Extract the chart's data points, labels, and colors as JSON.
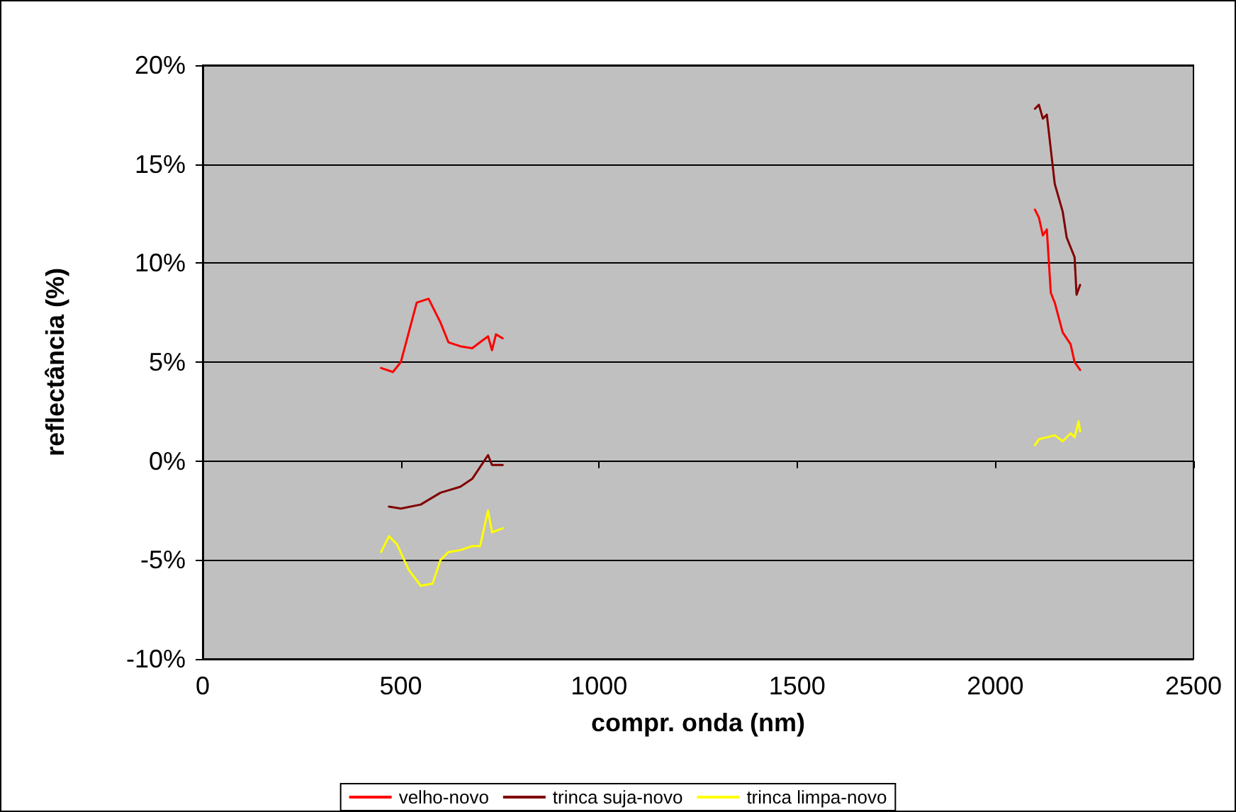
{
  "chart_data": {
    "type": "line",
    "xlabel": "compr. onda (nm)",
    "ylabel": "reflectância (%)",
    "xlim": [
      0,
      2500
    ],
    "xticks": [
      0,
      500,
      1000,
      1500,
      2000,
      2500
    ],
    "ylim": [
      -10,
      20
    ],
    "yticks": [
      {
        "value": -10,
        "label": "-10%"
      },
      {
        "value": -5,
        "label": "-5%"
      },
      {
        "value": 0,
        "label": "0%"
      },
      {
        "value": 5,
        "label": "5%"
      },
      {
        "value": 10,
        "label": "10%"
      },
      {
        "value": 15,
        "label": "15%"
      },
      {
        "value": 20,
        "label": "20%"
      }
    ],
    "grid": "y",
    "legend": "bottom",
    "marker": "none",
    "series": [
      {
        "name": "velho-novo",
        "color": "#ff0000",
        "x": [
          450,
          480,
          500,
          520,
          540,
          570,
          600,
          620,
          650,
          680,
          700,
          720,
          730,
          740,
          757,
          1500,
          2100,
          2110,
          2120,
          2130,
          2140,
          2150,
          2170,
          2190,
          2200,
          2214
        ],
        "values": [
          4.7,
          4.5,
          5,
          6.5,
          8,
          8.2,
          7,
          6,
          5.8,
          5.7,
          6,
          6.3,
          5.6,
          6.4,
          6.2,
          null,
          12.7,
          12.3,
          11.4,
          11.7,
          8.5,
          8,
          6.5,
          5.9,
          5,
          4.6
        ]
      },
      {
        "name": "trinca suja-novo",
        "color": "#800000",
        "x": [
          470,
          500,
          550,
          600,
          650,
          680,
          700,
          720,
          730,
          757,
          1500,
          2100,
          2110,
          2120,
          2130,
          2150,
          2170,
          2180,
          2200,
          2205,
          2214
        ],
        "values": [
          -2.3,
          -2.4,
          -2.2,
          -1.6,
          -1.3,
          -0.9,
          -0.3,
          0.3,
          -0.2,
          -0.2,
          null,
          17.8,
          18,
          17.3,
          17.5,
          14,
          12.6,
          11.3,
          10.3,
          8.4,
          8.9
        ]
      },
      {
        "name": "trinca limpa-novo",
        "color": "#ffff00",
        "x": [
          450,
          470,
          490,
          520,
          550,
          580,
          600,
          620,
          650,
          680,
          700,
          720,
          730,
          757,
          1500,
          2100,
          2110,
          2130,
          2150,
          2170,
          2190,
          2200,
          2210,
          2214
        ],
        "values": [
          -4.6,
          -3.8,
          -4.2,
          -5.5,
          -6.3,
          -6.2,
          -5,
          -4.6,
          -4.5,
          -4.3,
          -4.3,
          -2.5,
          -3.6,
          -3.4,
          null,
          0.8,
          1.1,
          1.2,
          1.3,
          1,
          1.4,
          1.2,
          2,
          1.5
        ]
      }
    ]
  }
}
